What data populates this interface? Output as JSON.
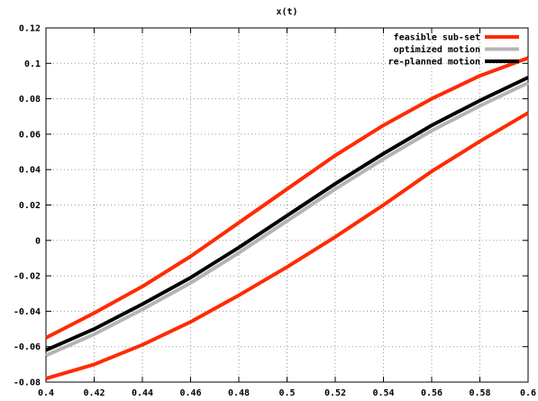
{
  "chart_data": {
    "type": "line",
    "title": "x(t)",
    "xlabel": "",
    "ylabel": "",
    "xlim": [
      0.4,
      0.6
    ],
    "ylim": [
      -0.08,
      0.12
    ],
    "grid": true,
    "legend_position": "top-right",
    "x_ticks": [
      "0.4",
      "0.42",
      "0.44",
      "0.46",
      "0.48",
      "0.5",
      "0.52",
      "0.54",
      "0.56",
      "0.58",
      "0.6"
    ],
    "y_ticks": [
      "-0.08",
      "-0.06",
      "-0.04",
      "-0.02",
      "0",
      "0.02",
      "0.04",
      "0.06",
      "0.08",
      "0.1",
      "0.12"
    ],
    "x": [
      0.4,
      0.42,
      0.44,
      0.46,
      0.48,
      0.5,
      0.52,
      0.54,
      0.56,
      0.58,
      0.6
    ],
    "series": [
      {
        "name": "feasible sub-set",
        "color": "#ff2a00",
        "values": [
          -0.055,
          -0.041,
          -0.026,
          -0.009,
          0.01,
          0.029,
          0.048,
          0.065,
          0.08,
          0.093,
          0.103
        ]
      },
      {
        "name": "",
        "legend": false,
        "color": "#ff2a00",
        "values": [
          -0.078,
          -0.07,
          -0.059,
          -0.046,
          -0.031,
          -0.015,
          0.002,
          0.02,
          0.039,
          0.056,
          0.072
        ]
      },
      {
        "name": "optimized motion",
        "color": "#b4b4b4",
        "values": [
          -0.065,
          -0.053,
          -0.039,
          -0.024,
          -0.007,
          0.011,
          0.029,
          0.046,
          0.062,
          0.076,
          0.089
        ]
      },
      {
        "name": "re-planned motion",
        "color": "#000000",
        "values": [
          -0.062,
          -0.05,
          -0.036,
          -0.021,
          -0.004,
          0.014,
          0.032,
          0.049,
          0.065,
          0.079,
          0.092
        ]
      }
    ]
  }
}
